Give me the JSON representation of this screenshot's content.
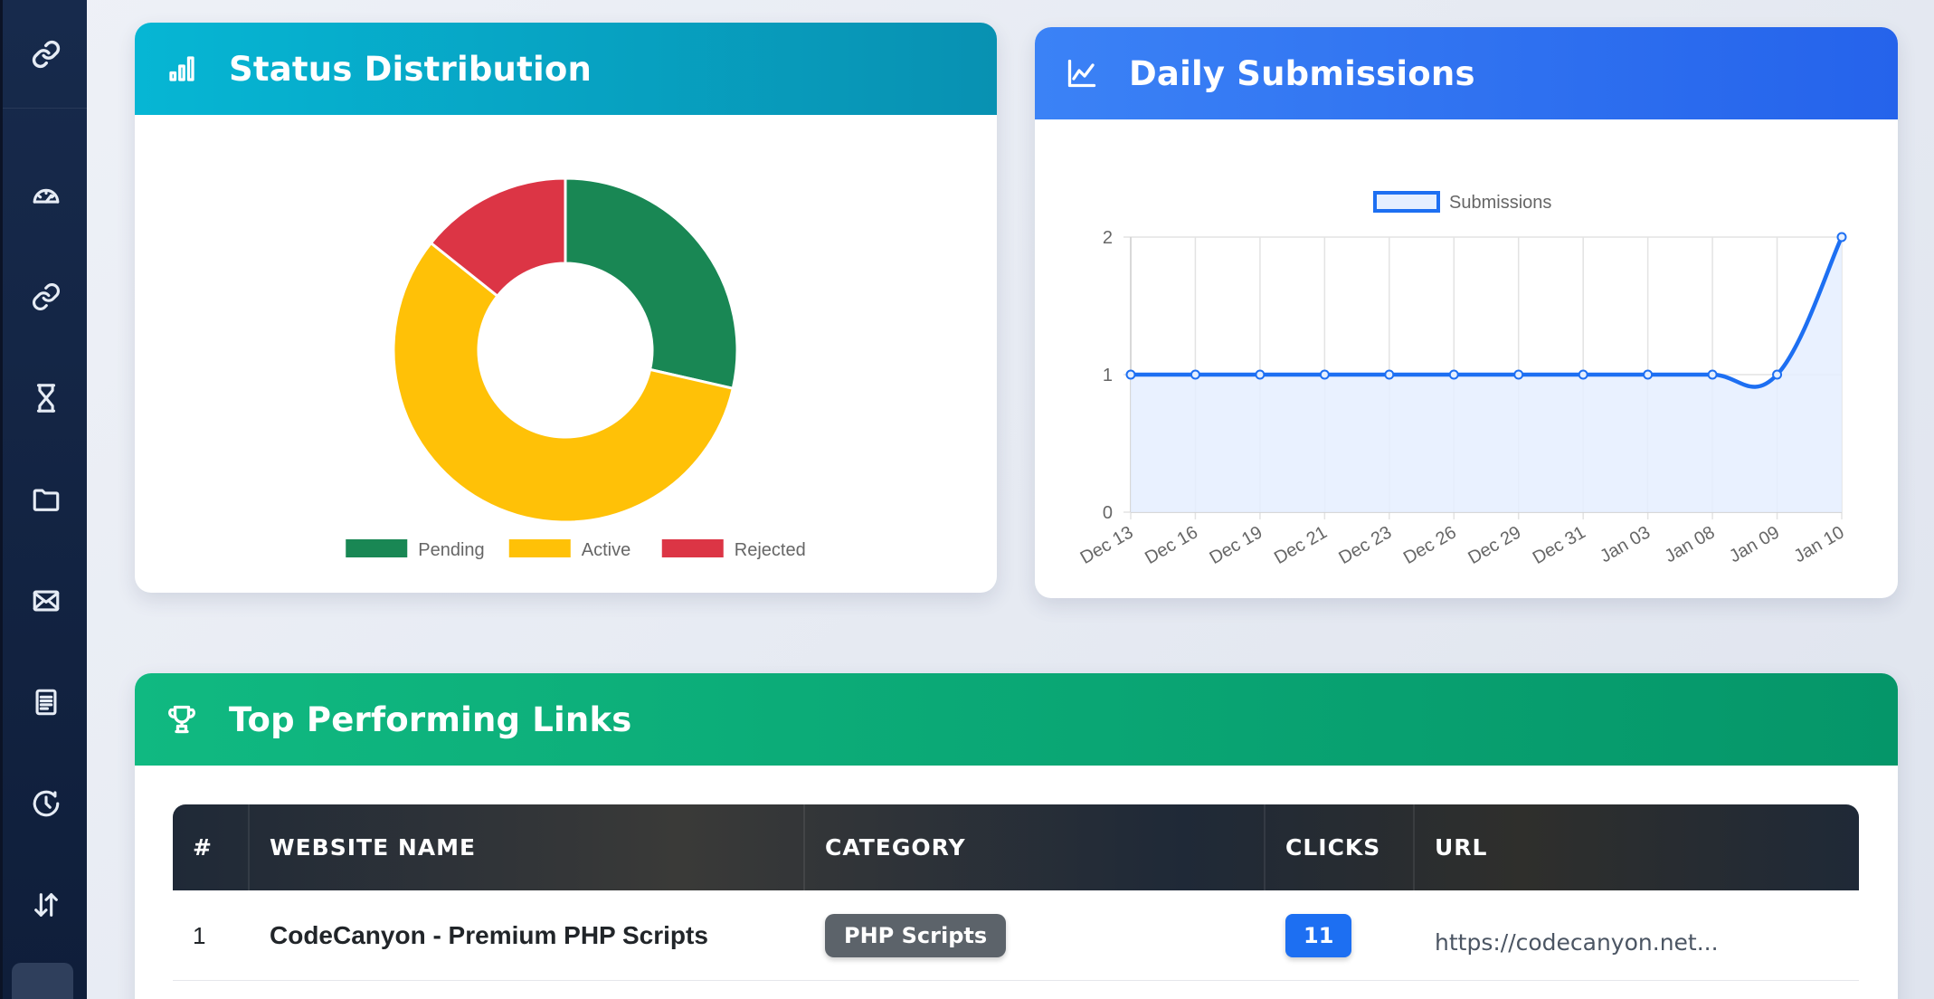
{
  "sidebar": {
    "brand_icon": "link-icon",
    "items": [
      {
        "icon": "dashboard-gauge-icon"
      },
      {
        "icon": "link-icon"
      },
      {
        "icon": "hourglass-icon"
      },
      {
        "icon": "folder-icon"
      },
      {
        "icon": "envelope-icon"
      },
      {
        "icon": "document-icon"
      },
      {
        "icon": "clock-history-icon"
      },
      {
        "icon": "sort-arrows-icon"
      }
    ]
  },
  "status_card": {
    "title": "Status Distribution",
    "icon": "bar-chart-icon",
    "header_colors": [
      "#06b6d4",
      "#0891b2"
    ]
  },
  "daily_card": {
    "title": "Daily Submissions",
    "icon": "line-chart-icon",
    "header_colors": [
      "#3b82f6",
      "#2563eb"
    ]
  },
  "top_card": {
    "title": "Top Performing Links",
    "icon": "trophy-icon",
    "header_colors": [
      "#10b981",
      "#059669"
    ],
    "columns": [
      "#",
      "WEBSITE NAME",
      "CATEGORY",
      "CLICKS",
      "URL"
    ],
    "rows": [
      {
        "rank": "1",
        "name": "CodeCanyon - Premium PHP Scripts",
        "category": "PHP Scripts",
        "clicks": "11",
        "url": "https://codecanyon.net..."
      }
    ]
  },
  "chart_data": [
    {
      "type": "pie",
      "variant": "doughnut",
      "categories": [
        "Pending",
        "Active",
        "Rejected"
      ],
      "values": [
        3,
        6,
        1.5
      ],
      "colors": [
        "#198754",
        "#ffc107",
        "#dc3545"
      ],
      "legend": "bottom"
    },
    {
      "type": "line",
      "x": [
        "Dec 13",
        "Dec 16",
        "Dec 19",
        "Dec 21",
        "Dec 23",
        "Dec 26",
        "Dec 29",
        "Dec 31",
        "Jan 03",
        "Jan 08",
        "Jan 09",
        "Jan 10"
      ],
      "series": [
        {
          "name": "Submissions",
          "values": [
            1,
            1,
            1,
            1,
            1,
            1,
            1,
            1,
            1,
            1,
            1,
            2
          ],
          "color": "#1d6ff2",
          "fill": "#e5efff"
        }
      ],
      "yticks": [
        0,
        1,
        2
      ],
      "ylim": [
        0,
        2
      ],
      "grid": true,
      "legend": "top"
    }
  ]
}
